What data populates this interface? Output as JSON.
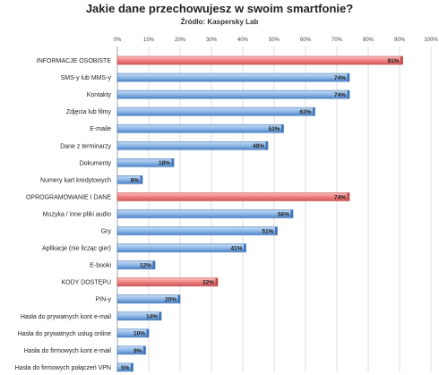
{
  "chart_data": {
    "type": "bar",
    "orientation": "horizontal",
    "title": "Jakie dane przechowujesz w swoim smartfonie?",
    "subtitle": "Źródło: Kaspersky Lab",
    "xlim": [
      0,
      100
    ],
    "x_ticks": [
      "0%",
      "10%",
      "20%",
      "30%",
      "40%",
      "50%",
      "60%",
      "70%",
      "80%",
      "90%",
      "100%"
    ],
    "grid": true,
    "categories": [
      "INFORMACJE OSOBISTE",
      "SMS-y lub MMS-y",
      "Kontakty",
      "Zdjęcia lub filmy",
      "E-maile",
      "Dane z terminarzy",
      "Dokumenty",
      "Numery kart kredytowych",
      "OPROGRAMOWANIE I DANE",
      "Muzyka / inne pliki audio",
      "Gry",
      "Aplikacje (nie licząc gier)",
      "E-booki",
      "KODY DOSTĘPU",
      "PIN-y",
      "Hasła do prywatnych kont e-mail",
      "Hasła do prywatnych usług online",
      "Hasła do firmowych kont e-mail",
      "Hasła do firmowych połączeń VPN"
    ],
    "values": [
      91,
      74,
      74,
      63,
      53,
      48,
      18,
      8,
      74,
      56,
      51,
      41,
      12,
      32,
      20,
      14,
      10,
      9,
      5
    ],
    "value_labels": [
      "91%",
      "74%",
      "74%",
      "63%",
      "53%",
      "48%",
      "18%",
      "8%",
      "74%",
      "56%",
      "51%",
      "41%",
      "12%",
      "32%",
      "20%",
      "14%",
      "10%",
      "9%",
      "5%"
    ],
    "highlighted": [
      true,
      false,
      false,
      false,
      false,
      false,
      false,
      false,
      true,
      false,
      false,
      false,
      false,
      true,
      false,
      false,
      false,
      false,
      false
    ],
    "colors": {
      "highlight": "#f08080",
      "highlight_dark": "#c04848",
      "normal": "#8fb8e6",
      "normal_dark": "#3f73b8",
      "grid": "#d0d0d0"
    }
  }
}
